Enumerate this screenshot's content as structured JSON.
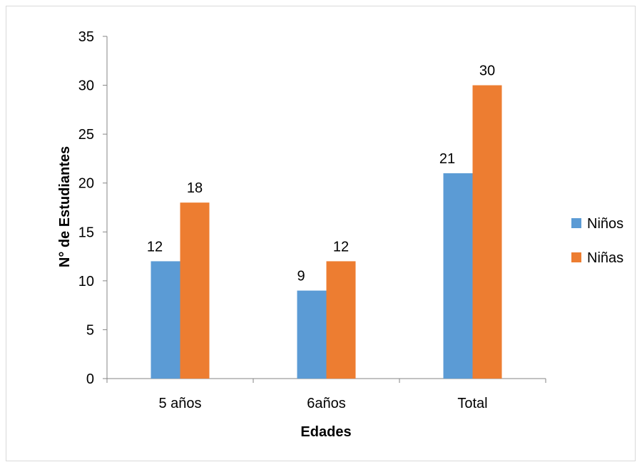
{
  "chart_data": {
    "type": "bar",
    "title": "",
    "xlabel": "Edades",
    "ylabel": "N° de Estudiantes",
    "categories": [
      "5 años",
      "6años",
      "Total"
    ],
    "series": [
      {
        "name": "Niños",
        "values": [
          12,
          9,
          21
        ],
        "color": "#5b9bd5"
      },
      {
        "name": "Niñas",
        "values": [
          18,
          12,
          30
        ],
        "color": "#ed7d31"
      }
    ],
    "ylim": [
      0,
      35
    ],
    "yticks": [
      0,
      5,
      10,
      15,
      20,
      25,
      30,
      35
    ],
    "grid": false,
    "legend_position": "right",
    "data_labels": true
  }
}
